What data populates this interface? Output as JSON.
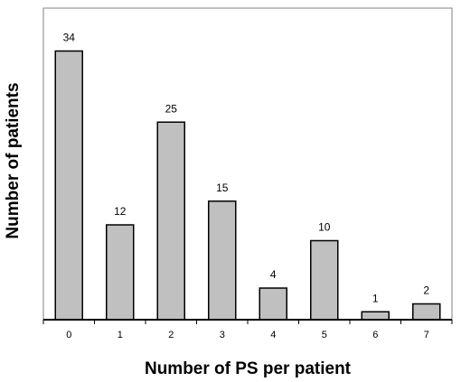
{
  "chart_data": {
    "type": "bar",
    "categories": [
      "0",
      "1",
      "2",
      "3",
      "4",
      "5",
      "6",
      "7"
    ],
    "values": [
      34,
      12,
      25,
      15,
      4,
      10,
      1,
      2
    ],
    "data_labels": [
      "34",
      "12",
      "25",
      "15",
      "4",
      "10",
      "1",
      "2"
    ],
    "title": "",
    "xlabel": "Number of PS per patient",
    "ylabel": "Number of patients",
    "ylim": [
      0,
      40
    ],
    "grid": false,
    "bar_color": "#c0c0c0",
    "bar_edge_color": "#000000"
  }
}
